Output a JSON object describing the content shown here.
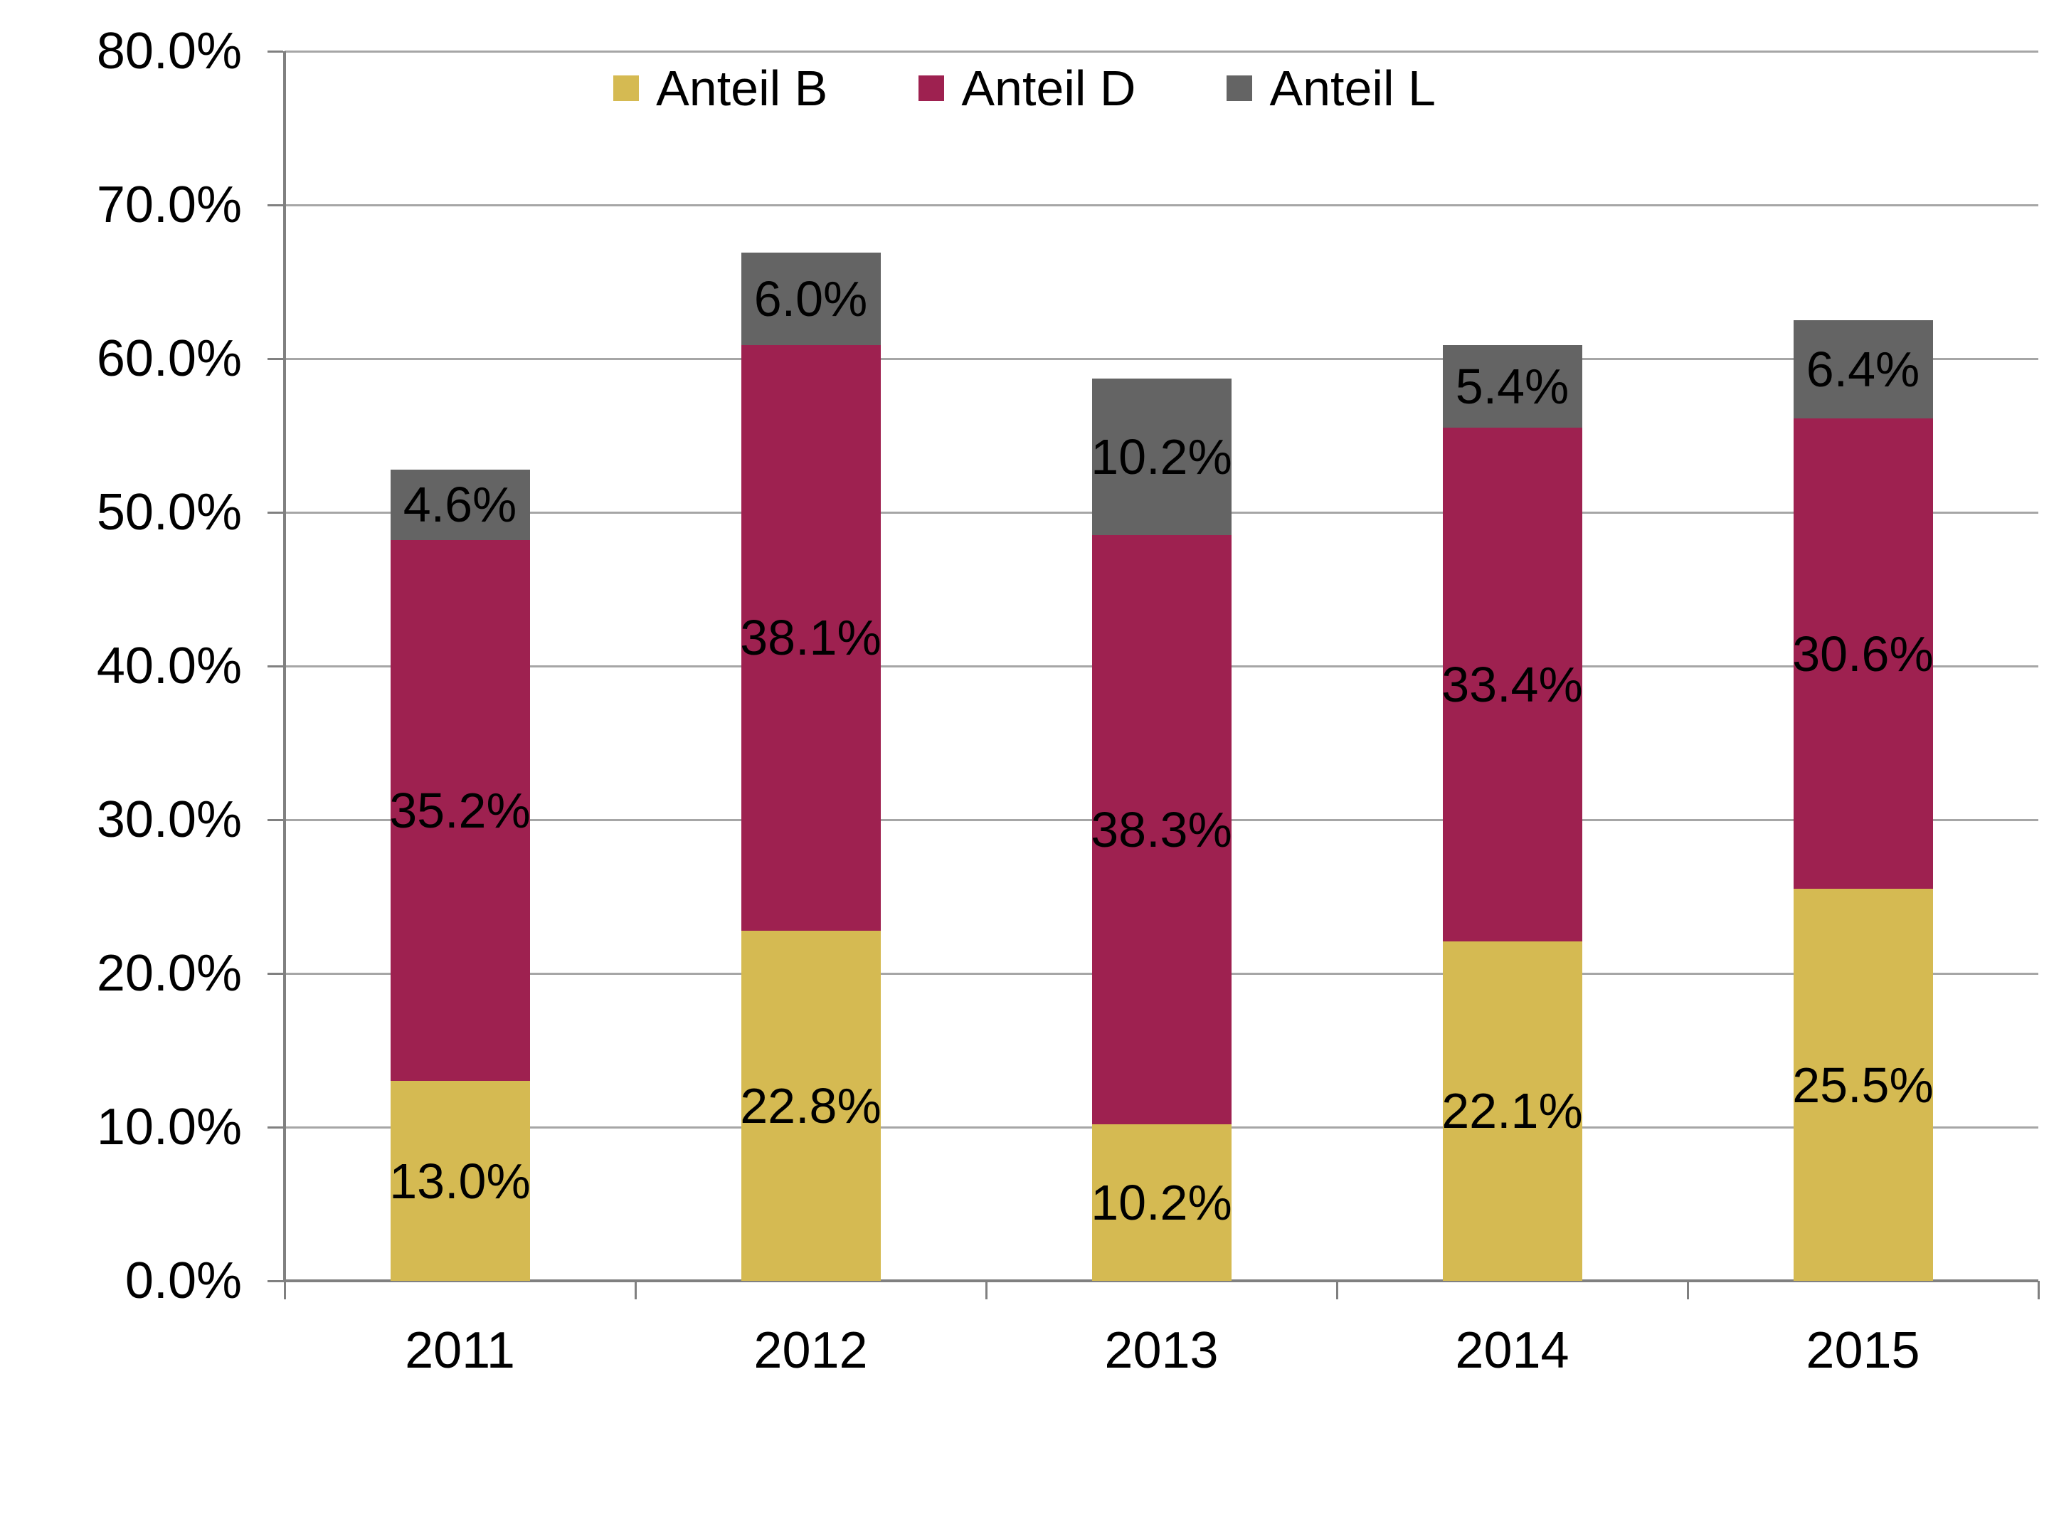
{
  "chart_data": {
    "type": "bar",
    "stacked": true,
    "categories": [
      "2011",
      "2012",
      "2013",
      "2014",
      "2015"
    ],
    "series": [
      {
        "name": "Anteil B",
        "color": "#d5ba52",
        "values": [
          13.0,
          22.8,
          10.2,
          22.1,
          25.5
        ],
        "labels": [
          "13.0%",
          "22.8%",
          "10.2%",
          "22.1%",
          "25.5%"
        ]
      },
      {
        "name": "Anteil D",
        "color": "#9e2150",
        "values": [
          35.2,
          38.1,
          38.3,
          33.4,
          30.6
        ],
        "labels": [
          "35.2%",
          "38.1%",
          "38.3%",
          "33.4%",
          "30.6%"
        ]
      },
      {
        "name": "Anteil L",
        "color": "#646464",
        "values": [
          4.6,
          6.0,
          10.2,
          5.4,
          6.4
        ],
        "labels": [
          "4.6%",
          "6.0%",
          "10.2%",
          "5.4%",
          "6.4%"
        ]
      }
    ],
    "title": "",
    "xlabel": "",
    "ylabel": "",
    "ylim": [
      0,
      80
    ],
    "y_tick_step": 10,
    "y_tick_labels": [
      "0.0%",
      "10.0%",
      "20.0%",
      "30.0%",
      "40.0%",
      "50.0%",
      "60.0%",
      "70.0%",
      "80.0%"
    ],
    "grid": true,
    "legend_position": "top-center",
    "colors": {
      "background": "#ffffff",
      "gridline": "#a6a6a6",
      "axis": "#808080",
      "text": "#000000"
    }
  }
}
